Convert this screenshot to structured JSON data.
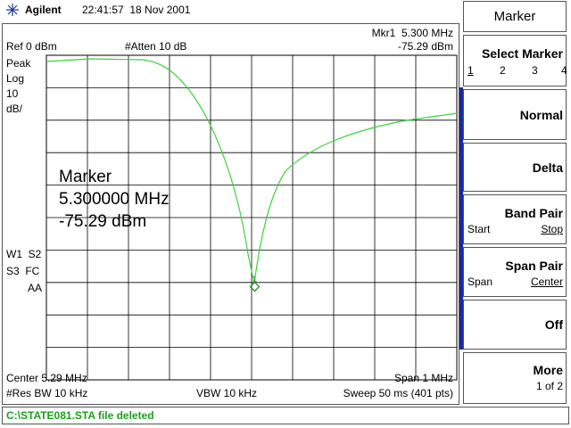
{
  "header": {
    "brand": "Agilent",
    "datetime": "22:41:57  18 Nov 2001"
  },
  "display": {
    "ref": "Ref 0 dBm",
    "atten": "#Atten 10 dB",
    "marker_readout": [
      "Mkr1  5.300 MHz",
      "-75.29 dBm"
    ],
    "scale_labels": [
      "Peak",
      "Log",
      "10",
      "dB/"
    ],
    "trace_labels": [
      "W1  S2",
      "S3  FC",
      "AA"
    ],
    "marker_box": [
      "Marker",
      "5.300000 MHz",
      "-75.29 dBm"
    ],
    "marker_id": "1",
    "center": "Center 5.29 MHz",
    "span": "Span 1 MHz",
    "rbw": "#Res BW 10 kHz",
    "vbw": "VBW 10 kHz",
    "sweep": "Sweep 50 ms (401 pts)"
  },
  "softkeys": {
    "title": "Marker",
    "keys": [
      {
        "label": "Select Marker",
        "options": [
          "1",
          "2",
          "3",
          "4"
        ]
      },
      {
        "label": "Normal"
      },
      {
        "label": "Delta"
      },
      {
        "label": "Band Pair",
        "left": "Start",
        "right": "Stop"
      },
      {
        "label": "Span Pair",
        "left": "Span",
        "right": "Center"
      },
      {
        "label": "Off"
      },
      {
        "label": "More",
        "right": "1 of 2"
      }
    ]
  },
  "status": "C:\\STATE081.STA file deleted"
}
